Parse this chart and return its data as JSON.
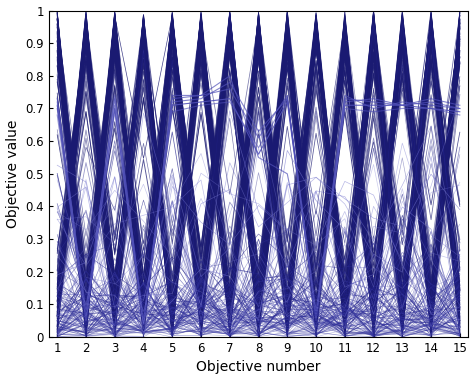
{
  "n_objectives": 15,
  "xlim_min": 1,
  "xlim_max": 15,
  "ylim_min": 0,
  "ylim_max": 1,
  "xlabel": "Objective number",
  "ylabel": "Objective value",
  "xlabel_fontsize": 10,
  "ylabel_fontsize": 10,
  "tick_fontsize": 8.5,
  "background_color": "#ffffff",
  "color_very_dark": "#1a1a72",
  "color_dark": "#22228a",
  "color_mid": "#3535a0",
  "color_light": "#5050b8",
  "color_lighter": "#7070cc",
  "random_seed": 7
}
